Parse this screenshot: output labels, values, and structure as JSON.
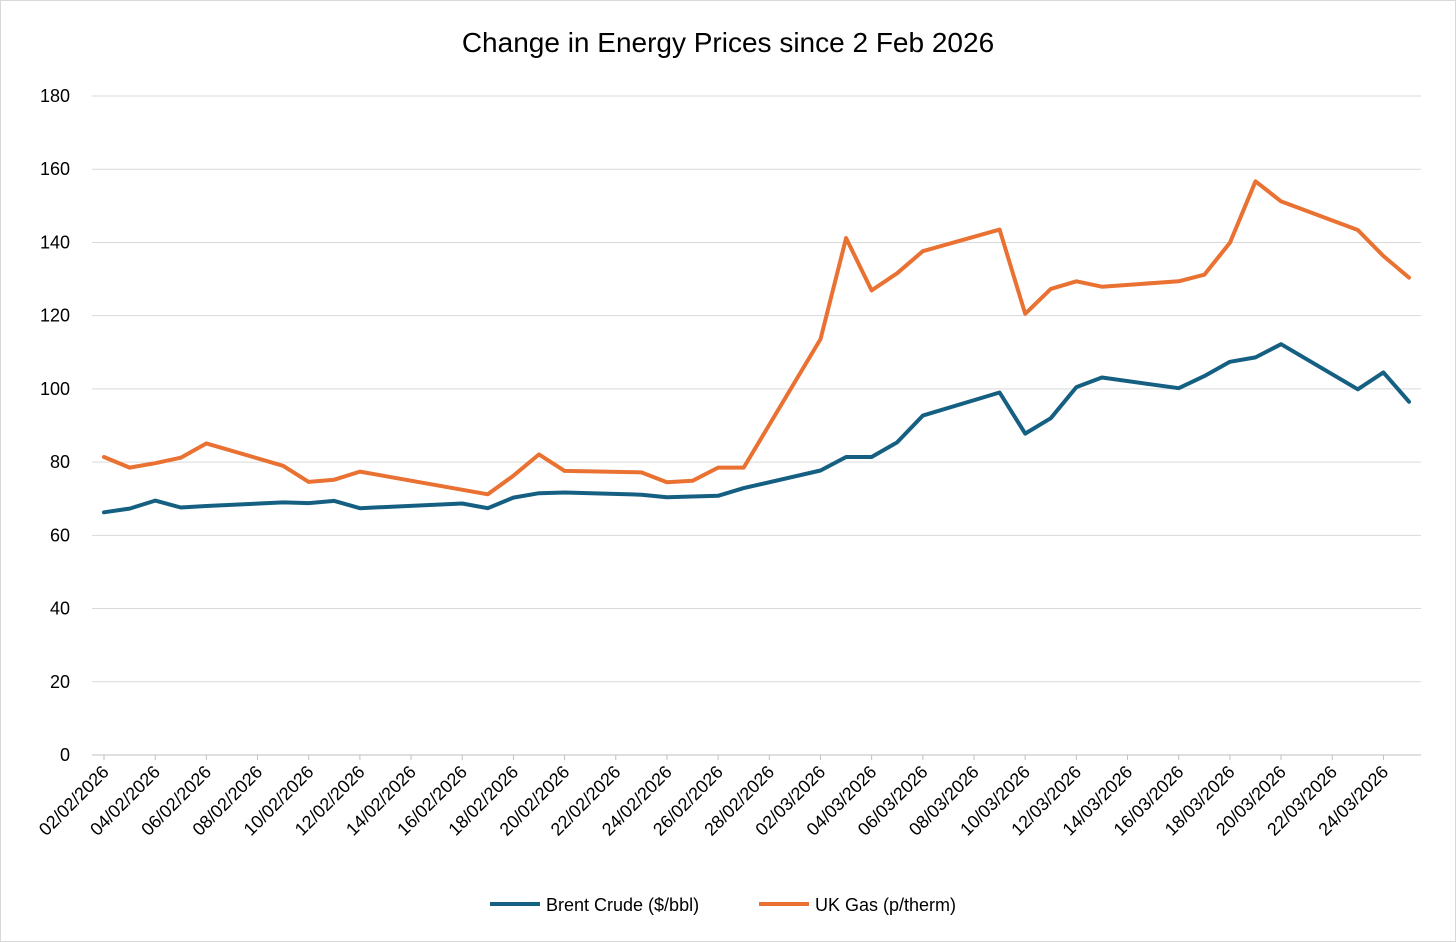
{
  "chart_data": {
    "type": "line",
    "title": "Change in Energy Prices since 2 Feb 2026",
    "xlabel": "",
    "ylabel": "",
    "ylim": [
      0,
      180
    ],
    "yticks": [
      0,
      20,
      40,
      60,
      80,
      100,
      120,
      140,
      160,
      180
    ],
    "xrange": [
      "2026-02-02",
      "2026-03-25"
    ],
    "xtick_labels": [
      "02/02/2026",
      "04/02/2026",
      "06/02/2026",
      "08/02/2026",
      "10/02/2026",
      "12/02/2026",
      "14/02/2026",
      "16/02/2026",
      "18/02/2026",
      "20/02/2026",
      "22/02/2026",
      "24/02/2026",
      "26/02/2026",
      "28/02/2026",
      "02/03/2026",
      "04/03/2026",
      "06/03/2026",
      "08/03/2026",
      "10/03/2026",
      "12/03/2026",
      "14/03/2026",
      "16/03/2026",
      "18/03/2026",
      "20/03/2026",
      "22/03/2026",
      "24/03/2026"
    ],
    "grid": true,
    "legend_position": "bottom",
    "series": [
      {
        "name": "Brent Crude ($/bbl)",
        "color": "#156082",
        "points": [
          [
            "2026-02-02",
            66.3
          ],
          [
            "2026-02-03",
            67.3
          ],
          [
            "2026-02-04",
            69.5
          ],
          [
            "2026-02-05",
            67.6
          ],
          [
            "2026-02-06",
            68.0
          ],
          [
            "2026-02-09",
            69.0
          ],
          [
            "2026-02-10",
            68.8
          ],
          [
            "2026-02-11",
            69.4
          ],
          [
            "2026-02-12",
            67.4
          ],
          [
            "2026-02-16",
            68.7
          ],
          [
            "2026-02-17",
            67.4
          ],
          [
            "2026-02-18",
            70.3
          ],
          [
            "2026-02-19",
            71.5
          ],
          [
            "2026-02-20",
            71.7
          ],
          [
            "2026-02-23",
            71.1
          ],
          [
            "2026-02-24",
            70.4
          ],
          [
            "2026-02-26",
            70.8
          ],
          [
            "2026-02-27",
            72.9
          ],
          [
            "2026-03-02",
            77.7
          ],
          [
            "2026-03-03",
            81.4
          ],
          [
            "2026-03-04",
            81.4
          ],
          [
            "2026-03-05",
            85.4
          ],
          [
            "2026-03-06",
            92.7
          ],
          [
            "2026-03-09",
            99.0
          ],
          [
            "2026-03-10",
            87.8
          ],
          [
            "2026-03-11",
            92.0
          ],
          [
            "2026-03-12",
            100.5
          ],
          [
            "2026-03-13",
            103.1
          ],
          [
            "2026-03-16",
            100.2
          ],
          [
            "2026-03-17",
            103.5
          ],
          [
            "2026-03-18",
            107.4
          ],
          [
            "2026-03-19",
            108.6
          ],
          [
            "2026-03-20",
            112.2
          ],
          [
            "2026-03-23",
            99.9
          ],
          [
            "2026-03-24",
            104.5
          ],
          [
            "2026-03-25",
            96.5
          ]
        ]
      },
      {
        "name": "UK Gas (p/therm)",
        "color": "#E97132",
        "points": [
          [
            "2026-02-02",
            81.4
          ],
          [
            "2026-02-03",
            78.5
          ],
          [
            "2026-02-04",
            79.7
          ],
          [
            "2026-02-05",
            81.2
          ],
          [
            "2026-02-06",
            85.1
          ],
          [
            "2026-02-09",
            79.0
          ],
          [
            "2026-02-10",
            74.6
          ],
          [
            "2026-02-11",
            75.2
          ],
          [
            "2026-02-12",
            77.4
          ],
          [
            "2026-02-17",
            71.2
          ],
          [
            "2026-02-18",
            76.3
          ],
          [
            "2026-02-19",
            82.1
          ],
          [
            "2026-02-20",
            77.6
          ],
          [
            "2026-02-23",
            77.2
          ],
          [
            "2026-02-24",
            74.5
          ],
          [
            "2026-02-25",
            74.9
          ],
          [
            "2026-02-26",
            78.5
          ],
          [
            "2026-02-27",
            78.5
          ],
          [
            "2026-03-02",
            113.6
          ],
          [
            "2026-03-03",
            141.2
          ],
          [
            "2026-03-04",
            126.9
          ],
          [
            "2026-03-05",
            131.6
          ],
          [
            "2026-03-06",
            137.6
          ],
          [
            "2026-03-09",
            143.5
          ],
          [
            "2026-03-10",
            120.5
          ],
          [
            "2026-03-11",
            127.3
          ],
          [
            "2026-03-12",
            129.4
          ],
          [
            "2026-03-13",
            127.9
          ],
          [
            "2026-03-16",
            129.4
          ],
          [
            "2026-03-17",
            131.2
          ],
          [
            "2026-03-18",
            139.9
          ],
          [
            "2026-03-19",
            156.7
          ],
          [
            "2026-03-20",
            151.2
          ],
          [
            "2026-03-23",
            143.4
          ],
          [
            "2026-03-24",
            136.3
          ],
          [
            "2026-03-25",
            130.4
          ]
        ]
      }
    ]
  }
}
